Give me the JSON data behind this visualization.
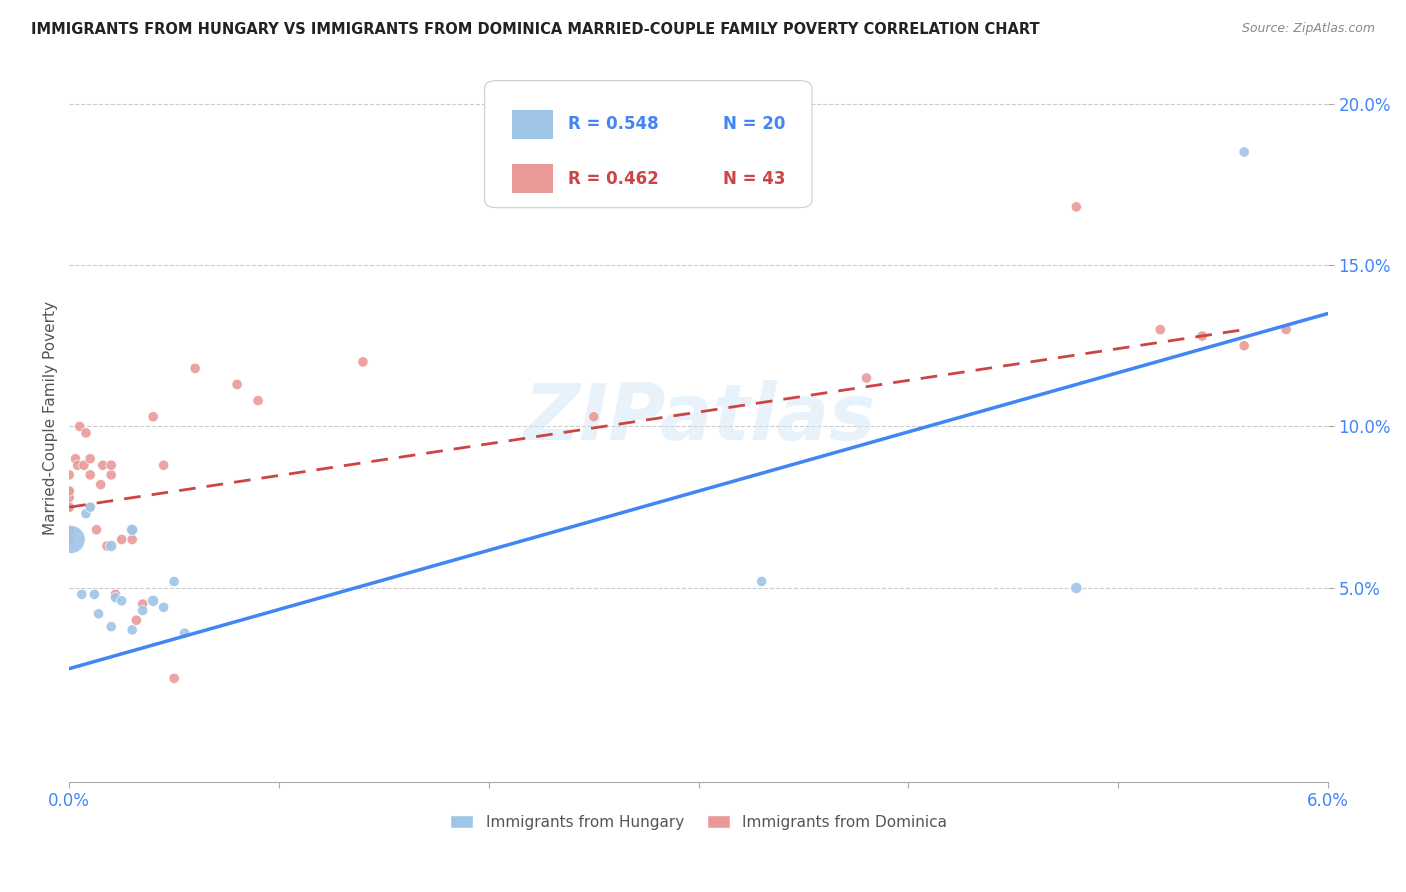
{
  "title": "IMMIGRANTS FROM HUNGARY VS IMMIGRANTS FROM DOMINICA MARRIED-COUPLE FAMILY POVERTY CORRELATION CHART",
  "source": "Source: ZipAtlas.com",
  "ylabel": "Married-Couple Family Poverty",
  "xlim": [
    0.0,
    0.06
  ],
  "ylim": [
    -0.01,
    0.215
  ],
  "xticks": [
    0.0,
    0.01,
    0.02,
    0.03,
    0.04,
    0.05,
    0.06
  ],
  "xticklabels": [
    "0.0%",
    "",
    "",
    "",
    "",
    "",
    "6.0%"
  ],
  "yticks": [
    0.05,
    0.1,
    0.15,
    0.2
  ],
  "yticklabels": [
    "5.0%",
    "10.0%",
    "15.0%",
    "20.0%"
  ],
  "legend_r1": "R = 0.548",
  "legend_n1": "N = 20",
  "legend_r2": "R = 0.462",
  "legend_n2": "N = 43",
  "color_hungary": "#9fc5e8",
  "color_dominica": "#ea9999",
  "color_hungary_line": "#4285f4",
  "color_dominica_line": "#cc4444",
  "watermark": "ZIPatlas",
  "hungary_x": [
    0.0001,
    0.0006,
    0.0008,
    0.001,
    0.0012,
    0.0014,
    0.002,
    0.002,
    0.0022,
    0.0025,
    0.003,
    0.003,
    0.0035,
    0.004,
    0.0045,
    0.005,
    0.0055,
    0.033,
    0.048,
    0.056
  ],
  "hungary_y": [
    0.065,
    0.048,
    0.073,
    0.075,
    0.048,
    0.042,
    0.038,
    0.063,
    0.047,
    0.046,
    0.037,
    0.068,
    0.043,
    0.046,
    0.044,
    0.052,
    0.036,
    0.052,
    0.05,
    0.185
  ],
  "hungary_size": [
    400,
    55,
    55,
    55,
    55,
    55,
    55,
    65,
    55,
    55,
    55,
    65,
    55,
    65,
    55,
    55,
    55,
    55,
    65,
    55
  ],
  "dominica_x": [
    0.0,
    0.0,
    0.0,
    0.0,
    0.0,
    0.0,
    0.0,
    0.0,
    0.0,
    0.0003,
    0.0004,
    0.0005,
    0.0007,
    0.0008,
    0.001,
    0.001,
    0.001,
    0.0013,
    0.0015,
    0.0016,
    0.0018,
    0.002,
    0.002,
    0.0022,
    0.0025,
    0.003,
    0.003,
    0.0032,
    0.0035,
    0.004,
    0.0045,
    0.005,
    0.006,
    0.008,
    0.009,
    0.014,
    0.025,
    0.038,
    0.048,
    0.052,
    0.054,
    0.056,
    0.058
  ],
  "dominica_y": [
    0.075,
    0.068,
    0.08,
    0.085,
    0.08,
    0.075,
    0.078,
    0.08,
    0.065,
    0.09,
    0.088,
    0.1,
    0.088,
    0.098,
    0.09,
    0.085,
    0.075,
    0.068,
    0.082,
    0.088,
    0.063,
    0.085,
    0.088,
    0.048,
    0.065,
    0.068,
    0.065,
    0.04,
    0.045,
    0.103,
    0.088,
    0.022,
    0.118,
    0.113,
    0.108,
    0.12,
    0.103,
    0.115,
    0.168,
    0.13,
    0.128,
    0.125,
    0.13
  ],
  "dominica_size": [
    55,
    55,
    55,
    55,
    55,
    55,
    55,
    55,
    55,
    55,
    55,
    55,
    55,
    55,
    55,
    55,
    55,
    55,
    55,
    55,
    55,
    55,
    55,
    55,
    55,
    55,
    55,
    55,
    55,
    55,
    55,
    55,
    55,
    55,
    55,
    55,
    55,
    55,
    55,
    55,
    55,
    55,
    55
  ],
  "hungary_line_x": [
    0.0,
    0.06
  ],
  "hungary_line_y": [
    0.025,
    0.135
  ],
  "dominica_line_x": [
    0.0,
    0.056
  ],
  "dominica_line_y": [
    0.075,
    0.13
  ]
}
